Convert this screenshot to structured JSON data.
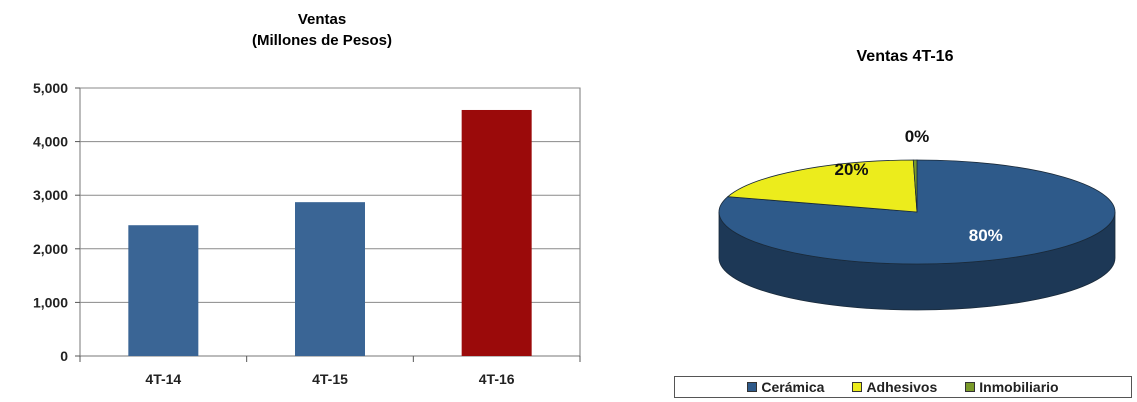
{
  "chart_data": [
    {
      "type": "bar",
      "title": "Ventas",
      "subtitle": "(Millones de Pesos)",
      "categories": [
        "4T-14",
        "4T-15",
        "4T-16"
      ],
      "values": [
        2440,
        2870,
        4590
      ],
      "colors": [
        "#3a6595",
        "#3a6595",
        "#9b0a0a"
      ],
      "ylim": [
        0,
        5000
      ],
      "yticks": [
        0,
        1000,
        2000,
        3000,
        4000,
        5000
      ],
      "ytick_labels": [
        "0",
        "1,000",
        "2,000",
        "3,000",
        "4,000",
        "5,000"
      ],
      "grid": true
    },
    {
      "type": "pie",
      "title": "Ventas 4T-16",
      "slices": [
        {
          "name": "Cerámica",
          "value": 80,
          "label": "80%",
          "color": "#2e5a8a"
        },
        {
          "name": "Adhesivos",
          "value": 20,
          "label": "20%",
          "color": "#ecec1c"
        },
        {
          "name": "Inmobiliario",
          "value": 0.3,
          "label": "0%",
          "color": "#7a9a2a"
        }
      ],
      "legend_position": "bottom"
    }
  ]
}
